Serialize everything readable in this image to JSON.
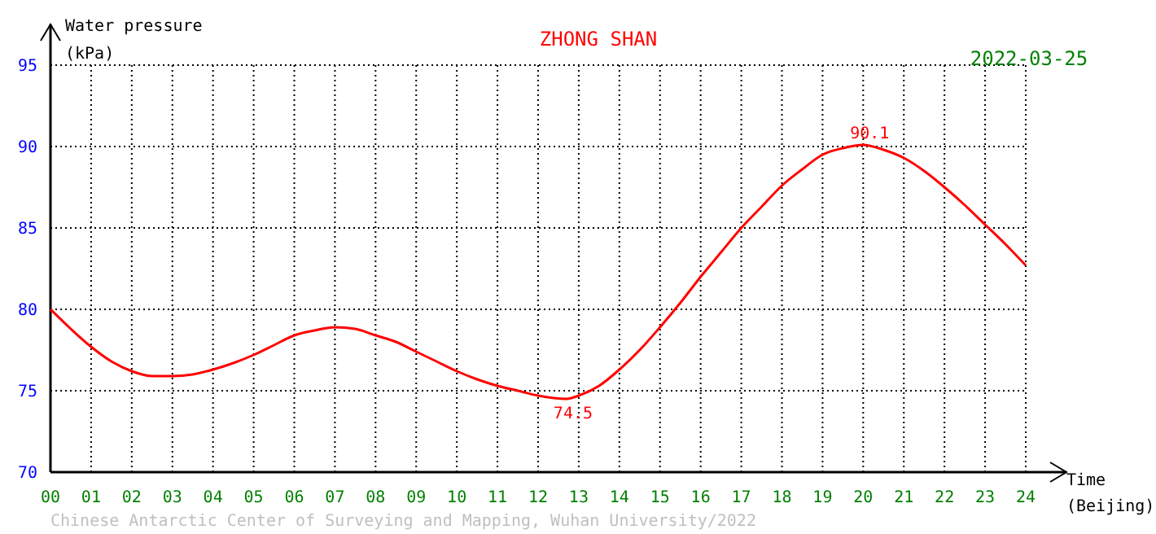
{
  "chart_data": {
    "type": "line",
    "title": "ZHONG SHAN",
    "subtitle": "2022-03-25",
    "ylabel": "Water pressure\n(kPa)",
    "xlabel": "Time\n(Beijing)",
    "annotations": [
      {
        "text": "90.1",
        "x": 20,
        "y": 90.1
      },
      {
        "text": "74.5",
        "x": 12.7,
        "y": 74.5
      },
      "Chinese Antarctic Center of Surveying and Mapping, Wuhan University/2022"
    ],
    "x": [
      0,
      0.5,
      1,
      1.5,
      2,
      2.5,
      3,
      3.5,
      4,
      4.5,
      5,
      5.5,
      6,
      6.5,
      7,
      7.5,
      8,
      8.5,
      9,
      9.5,
      10,
      10.5,
      11,
      11.5,
      12,
      12.7,
      13,
      13.5,
      14,
      14.5,
      15,
      15.5,
      16,
      16.5,
      17,
      17.5,
      18,
      18.5,
      19,
      19.5,
      20,
      20.5,
      21,
      21.5,
      22,
      22.5,
      23,
      23.5,
      24
    ],
    "series": [
      {
        "color": "#ff0000",
        "values": [
          80,
          78.8,
          77.7,
          76.8,
          76.2,
          75.9,
          75.9,
          76,
          76.3,
          76.7,
          77.2,
          77.8,
          78.4,
          78.7,
          78.9,
          78.8,
          78.4,
          78,
          77.4,
          76.8,
          76.2,
          75.7,
          75.3,
          75,
          74.7,
          74.5,
          74.7,
          75.3,
          76.3,
          77.5,
          78.9,
          80.4,
          82,
          83.5,
          85,
          86.3,
          87.6,
          88.6,
          89.5,
          89.9,
          90.1,
          89.8,
          89.3,
          88.5,
          87.5,
          86.4,
          85.2,
          84,
          82.7
        ]
      }
    ],
    "xlim": [
      0,
      24
    ],
    "xticks": [
      {
        "value": 0,
        "label": "00"
      },
      {
        "value": 1,
        "label": "01"
      },
      {
        "value": 2,
        "label": "02"
      },
      {
        "value": 3,
        "label": "03"
      },
      {
        "value": 4,
        "label": "04"
      },
      {
        "value": 5,
        "label": "05"
      },
      {
        "value": 6,
        "label": "06"
      },
      {
        "value": 7,
        "label": "07"
      },
      {
        "value": 8,
        "label": "08"
      },
      {
        "value": 9,
        "label": "09"
      },
      10,
      11,
      12,
      13,
      14,
      15,
      16,
      17,
      18,
      19,
      20,
      21,
      22,
      23,
      24
    ],
    "ylim": [
      70,
      95
    ],
    "yticks": [
      70,
      75,
      80,
      85,
      90,
      95
    ],
    "grid": true,
    "marker": "none",
    "line_style": "solid"
  }
}
